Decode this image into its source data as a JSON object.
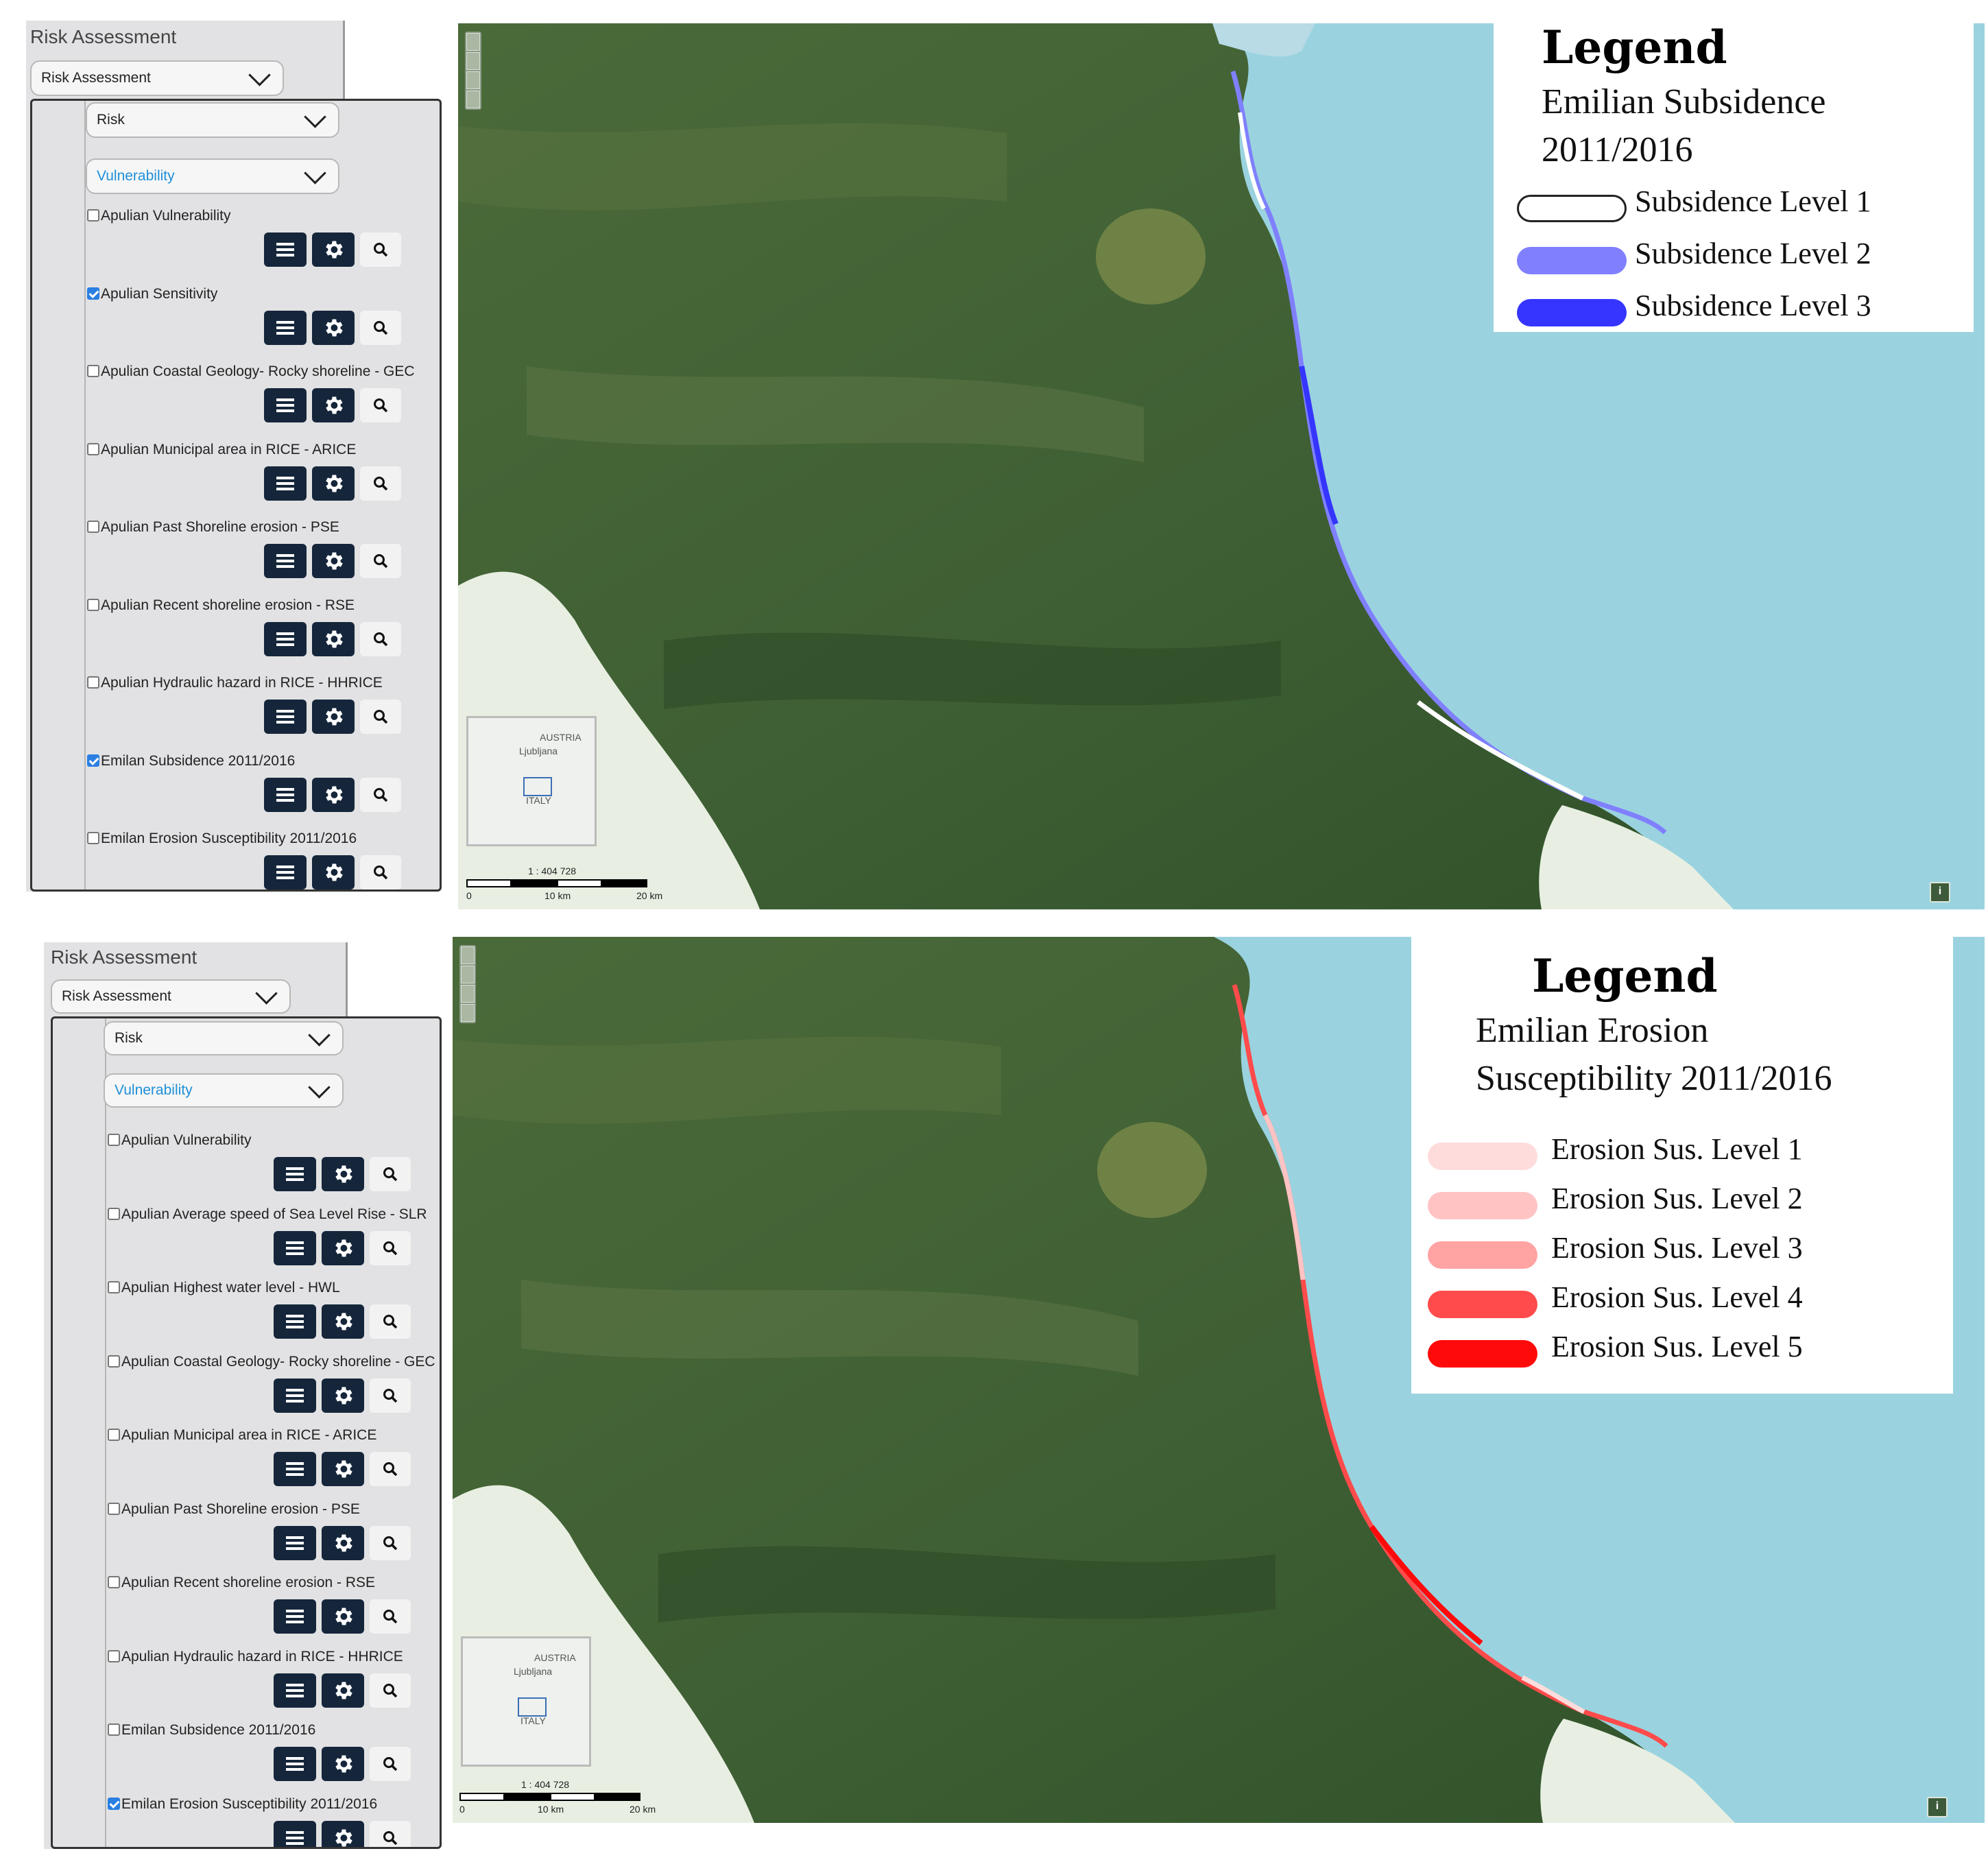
{
  "panels": [
    {
      "sidebar": {
        "title": "Risk Assessment",
        "select_main": "Risk Assessment",
        "select_risk": "Risk",
        "select_vuln": "Vulnerability",
        "layers": [
          {
            "label": "Apulian Vulnerability",
            "checked": false
          },
          {
            "label": "Apulian Sensitivity",
            "checked": true
          },
          {
            "label": "Apulian Coastal Geology- Rocky shoreline - GEC",
            "checked": false
          },
          {
            "label": "Apulian Municipal area in RICE - ARICE",
            "checked": false
          },
          {
            "label": "Apulian Past Shoreline erosion - PSE",
            "checked": false
          },
          {
            "label": "Apulian Recent shoreline erosion - RSE",
            "checked": false
          },
          {
            "label": "Apulian Hydraulic hazard in RICE - HHRICE",
            "checked": false
          },
          {
            "label": "Emilan Subsidence 2011/2016",
            "checked": true
          },
          {
            "label": "Emilan Erosion Susceptibility 2011/2016",
            "checked": false
          }
        ]
      },
      "map": {
        "overview_labels": [
          "AUSTRIA",
          "Ljubljana",
          "ITALY"
        ],
        "scale_text": "1 : 404 728",
        "scale_ticks": [
          "0",
          "10 km",
          "20 km"
        ],
        "info_label": "i"
      },
      "legend": {
        "heading": "Legend",
        "subtitle_lines": [
          "Emilian Subsidence",
          "2011/2016"
        ],
        "items": [
          {
            "label": "Subsidence Level 1",
            "color": "#ffffff"
          },
          {
            "label": "Subsidence Level 2",
            "color": "#8080ff"
          },
          {
            "label": "Subsidence Level 3",
            "color": "#3535ff"
          }
        ]
      }
    },
    {
      "sidebar": {
        "title": "Risk Assessment",
        "select_main": "Risk Assessment",
        "select_risk": "Risk",
        "select_vuln": "Vulnerability",
        "layers": [
          {
            "label": "Apulian Vulnerability",
            "checked": false
          },
          {
            "label": "Apulian Average speed of Sea Level Rise - SLR",
            "checked": false
          },
          {
            "label": "Apulian Highest water level - HWL",
            "checked": false
          },
          {
            "label": "Apulian Coastal Geology- Rocky shoreline - GEC",
            "checked": false
          },
          {
            "label": "Apulian Municipal area in RICE - ARICE",
            "checked": false
          },
          {
            "label": "Apulian Past Shoreline erosion - PSE",
            "checked": false
          },
          {
            "label": "Apulian Recent shoreline erosion - RSE",
            "checked": false
          },
          {
            "label": "Apulian Hydraulic hazard in RICE - HHRICE",
            "checked": false
          },
          {
            "label": "Emilan Subsidence 2011/2016",
            "checked": false
          },
          {
            "label": "Emilan Erosion Susceptibility 2011/2016",
            "checked": true
          }
        ]
      },
      "map": {
        "overview_labels": [
          "AUSTRIA",
          "Ljubljana",
          "ITALY"
        ],
        "scale_text": "1 : 404 728",
        "scale_ticks": [
          "0",
          "10 km",
          "20 km"
        ],
        "info_label": "i"
      },
      "legend": {
        "heading": "Legend",
        "subtitle_lines": [
          "Emilian Erosion",
          "Susceptibility 2011/2016"
        ],
        "items": [
          {
            "label": "Erosion Sus. Level 1",
            "color": "#ffdcdc"
          },
          {
            "label": "Erosion Sus. Level 2",
            "color": "#ffc3c3"
          },
          {
            "label": "Erosion Sus. Level 3",
            "color": "#ffa3a3"
          },
          {
            "label": "Erosion Sus. Level 4",
            "color": "#ff4b4b"
          },
          {
            "label": "Erosion Sus. Level 5",
            "color": "#ff0a0a"
          }
        ]
      }
    }
  ]
}
